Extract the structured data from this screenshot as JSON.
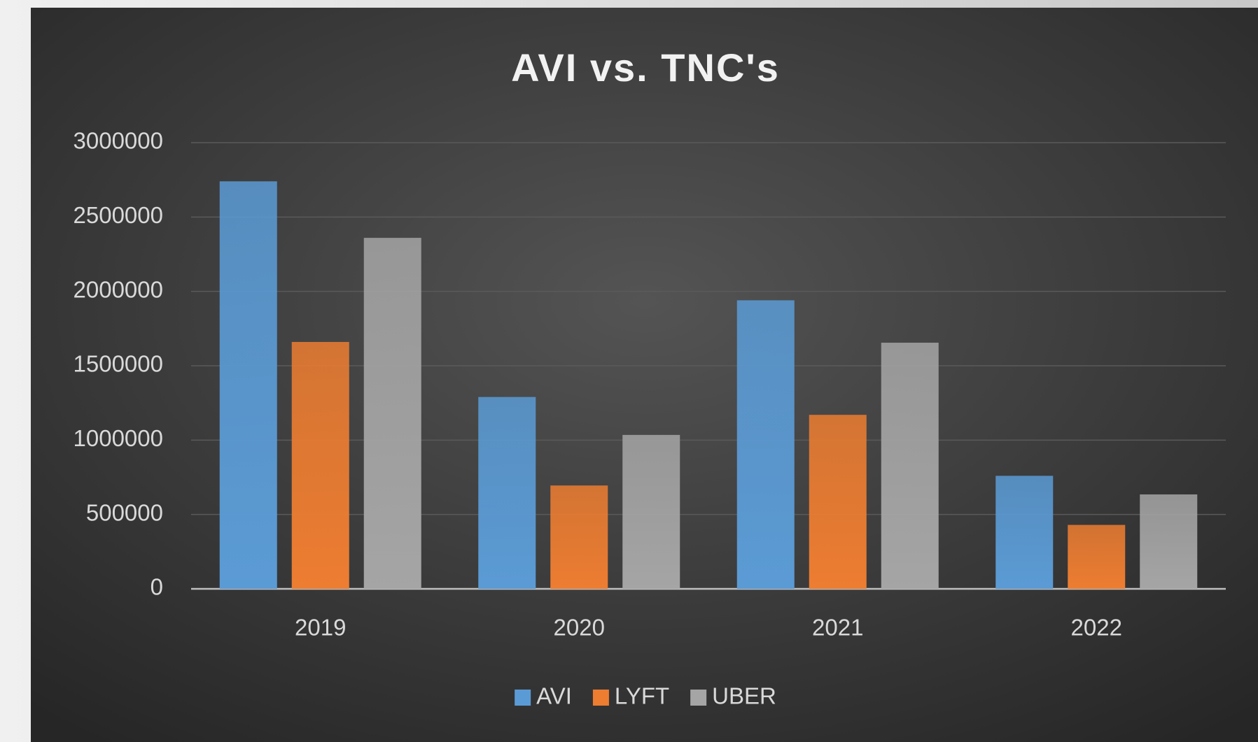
{
  "chart_data": {
    "type": "bar",
    "title": "AVI vs. TNC's",
    "categories": [
      "2019",
      "2020",
      "2021",
      "2022"
    ],
    "series": [
      {
        "name": "AVI",
        "color": "#5b9bd5",
        "values": [
          2740000,
          1290000,
          1940000,
          760000
        ]
      },
      {
        "name": "LYFT",
        "color": "#ed7d31",
        "values": [
          1660000,
          695000,
          1170000,
          430000
        ]
      },
      {
        "name": "UBER",
        "color": "#a5a5a5",
        "values": [
          2360000,
          1035000,
          1655000,
          635000
        ]
      }
    ],
    "ylim": [
      0,
      3000000
    ],
    "yticks": [
      0,
      500000,
      1000000,
      1500000,
      2000000,
      2500000,
      3000000
    ],
    "grid": true,
    "legend": "bottom"
  }
}
